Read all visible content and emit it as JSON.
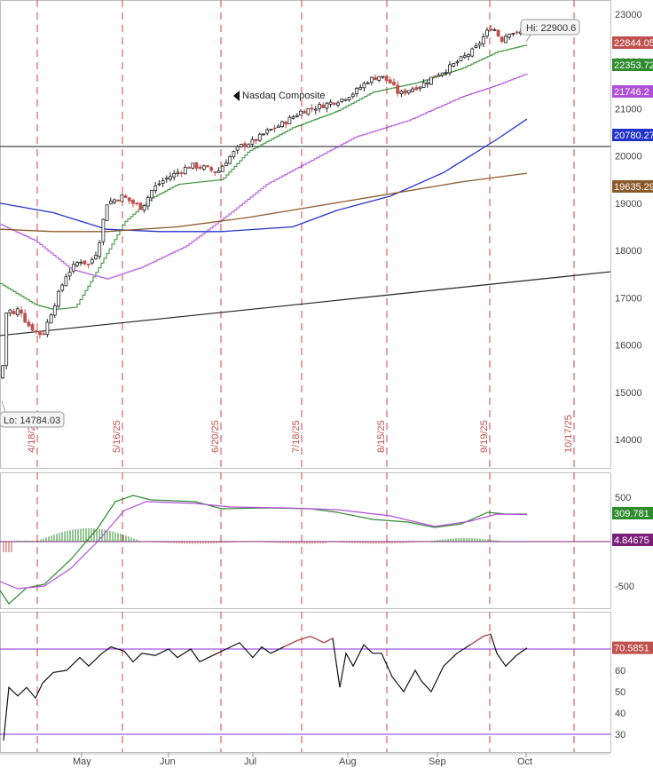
{
  "chart_data": {
    "type": "candlestick",
    "title": "Nasdaq Composite",
    "price_axis": {
      "ticks": [
        14000,
        15000,
        16000,
        17000,
        18000,
        19000,
        20000,
        21000,
        22000,
        23000
      ],
      "range": [
        13400,
        23300
      ]
    },
    "month_labels": [
      "May",
      "Jun",
      "Jul",
      "Aug",
      "Sep",
      "Oct"
    ],
    "event_lines": [
      "4/18/25",
      "5/16/25",
      "6/20/25",
      "7/18/25",
      "8/15/25",
      "9/19/25",
      "10/17/25"
    ],
    "annotations": {
      "high": "Hi: 22900.6",
      "low": "Lo: 14784.03"
    },
    "price_labels": [
      {
        "text": "22844.05",
        "value": 22844.05,
        "color": "#c0504d"
      },
      {
        "text": "22353.72",
        "value": 22353.72,
        "color": "#2e8b2e"
      },
      {
        "text": "21746.2",
        "value": 21746.2,
        "color": "#b04fd8"
      },
      {
        "text": "20780.27",
        "value": 20780.27,
        "color": "#2233cc"
      },
      {
        "text": "19635.29",
        "value": 19635.29,
        "color": "#8b5a2b"
      }
    ],
    "horizontal_level": 20200,
    "trendline": {
      "from": 16200,
      "to": 17550
    },
    "macd": {
      "ticks": [
        500,
        -500
      ],
      "labels": [
        {
          "text": "309.781",
          "value": 309.781,
          "color": "#2e8b2e"
        },
        {
          "text": "4.84675",
          "value": 4.84675,
          "color": "#7a1f7a"
        }
      ]
    },
    "rsi": {
      "ticks": [
        30,
        40,
        50,
        60
      ],
      "overbought": 70,
      "oversold": 30,
      "label": {
        "text": "70.5851",
        "value": 70.5851,
        "color": "#c0504d"
      }
    },
    "colors": {
      "up": "#2e8b2e",
      "down": "#c0504d",
      "event": "#d04040",
      "ma_short": "#2e8b2e",
      "ma_mid": "#b04fd8",
      "ma_long": "#2233cc",
      "ma_200": "#8b5a2b"
    }
  }
}
